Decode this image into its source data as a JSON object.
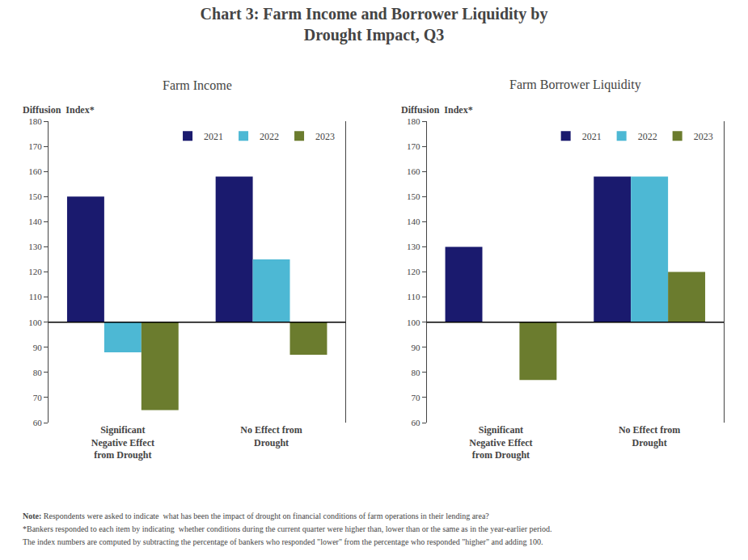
{
  "title": "Chart 3: Farm Income and Borrower Liquidity by\nDrought Impact, Q3",
  "note": {
    "label": "Note:",
    "lines": [
      " Respondents were asked to indicate  what has been the impact of drought on financial conditions of farm operations in their lending area?",
      "*Bankers responded to each item by indicating  whether conditions during the current quarter were higher than, lower than or the same as in the year-earlier period.",
      "The index numbers are computed by subtracting the percentage of bankers who responded \"lower\" from the percentage who responded \"higher\" and adding 100."
    ]
  },
  "chart_data": [
    {
      "type": "bar",
      "subtitle": "Farm Income",
      "ylabel": "Diffusion  Index*",
      "baseline": 100,
      "categories": [
        "Significant\nNegative Effect\nfrom Drought",
        "No Effect from\nDrought"
      ],
      "series": [
        {
          "name": "2021",
          "color": "#1a1a6e",
          "values": [
            150,
            158
          ]
        },
        {
          "name": "2022",
          "color": "#4db8d4",
          "values": [
            88,
            125
          ]
        },
        {
          "name": "2023",
          "color": "#6b7c2e",
          "values": [
            65,
            87
          ]
        }
      ],
      "ylim": [
        60,
        180
      ],
      "yticks": [
        60,
        70,
        80,
        90,
        100,
        110,
        120,
        130,
        140,
        150,
        160,
        170,
        180
      ],
      "legend": "upper right",
      "grid": false
    },
    {
      "type": "bar",
      "subtitle": "Farm Borrower Liquidity",
      "ylabel": "Diffusion  Index*",
      "baseline": 100,
      "categories": [
        "Significant\nNegative Effect\nfrom Drought",
        "No Effect from\nDrought"
      ],
      "series": [
        {
          "name": "2021",
          "color": "#1a1a6e",
          "values": [
            130,
            158
          ]
        },
        {
          "name": "2022",
          "color": "#4db8d4",
          "values": [
            100,
            158
          ]
        },
        {
          "name": "2023",
          "color": "#6b7c2e",
          "values": [
            77,
            120
          ]
        }
      ],
      "ylim": [
        60,
        180
      ],
      "yticks": [
        60,
        70,
        80,
        90,
        100,
        110,
        120,
        130,
        140,
        150,
        160,
        170,
        180
      ],
      "legend": "upper right",
      "grid": false
    }
  ]
}
